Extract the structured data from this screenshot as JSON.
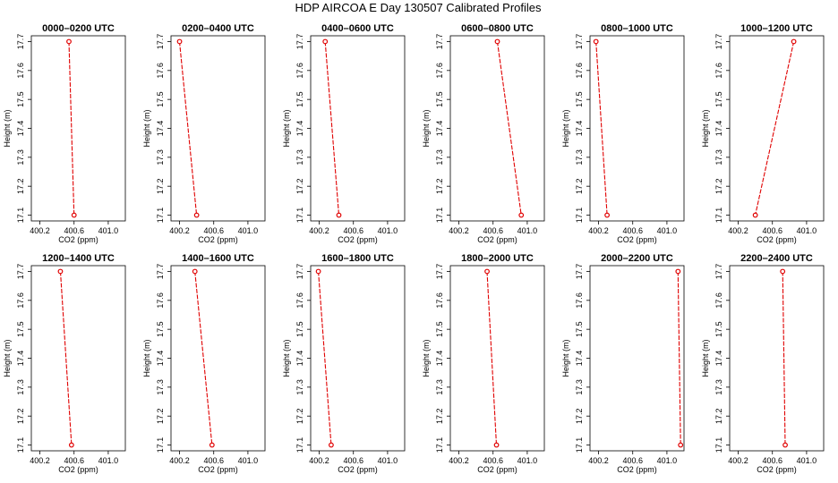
{
  "title": "HDP AIRCOA E  Day 130507  Calibrated Profiles",
  "chart_data": [
    {
      "type": "line",
      "title": "0000–0200 UTC",
      "xlabel": "CO2 (ppm)",
      "ylabel": "Height (m)",
      "xlim": [
        400.1,
        401.2
      ],
      "ylim": [
        17.08,
        17.72
      ],
      "xticks": [
        "400.2",
        "400.6",
        "401.0"
      ],
      "yticks": [
        "17.1",
        "17.2",
        "17.3",
        "17.4",
        "17.5",
        "17.6",
        "17.7"
      ],
      "x": [
        400.54,
        400.6
      ],
      "y": [
        17.7,
        17.1
      ]
    },
    {
      "type": "line",
      "title": "0200–0400 UTC",
      "xlabel": "CO2 (ppm)",
      "ylabel": "Height (m)",
      "xlim": [
        400.1,
        401.2
      ],
      "ylim": [
        17.08,
        17.72
      ],
      "xticks": [
        "400.2",
        "400.6",
        "401.0"
      ],
      "yticks": [
        "17.1",
        "17.2",
        "17.3",
        "17.4",
        "17.5",
        "17.6",
        "17.7"
      ],
      "x": [
        400.2,
        400.4
      ],
      "y": [
        17.7,
        17.1
      ]
    },
    {
      "type": "line",
      "title": "0400–0600 UTC",
      "xlabel": "CO2 (ppm)",
      "ylabel": "Height (m)",
      "xlim": [
        400.1,
        401.2
      ],
      "ylim": [
        17.08,
        17.72
      ],
      "xticks": [
        "400.2",
        "400.6",
        "401.0"
      ],
      "yticks": [
        "17.1",
        "17.2",
        "17.3",
        "17.4",
        "17.5",
        "17.6",
        "17.7"
      ],
      "x": [
        400.27,
        400.43
      ],
      "y": [
        17.7,
        17.1
      ]
    },
    {
      "type": "line",
      "title": "0600–0800 UTC",
      "xlabel": "CO2 (ppm)",
      "ylabel": "Height (m)",
      "xlim": [
        400.1,
        401.2
      ],
      "ylim": [
        17.08,
        17.72
      ],
      "xticks": [
        "400.2",
        "400.6",
        "401.0"
      ],
      "yticks": [
        "17.1",
        "17.2",
        "17.3",
        "17.4",
        "17.5",
        "17.6",
        "17.7"
      ],
      "x": [
        400.65,
        400.93
      ],
      "y": [
        17.7,
        17.1
      ]
    },
    {
      "type": "line",
      "title": "0800–1000 UTC",
      "xlabel": "CO2 (ppm)",
      "ylabel": "Height (m)",
      "xlim": [
        400.1,
        401.2
      ],
      "ylim": [
        17.08,
        17.72
      ],
      "xticks": [
        "400.2",
        "400.6",
        "401.0"
      ],
      "yticks": [
        "17.1",
        "17.2",
        "17.3",
        "17.4",
        "17.5",
        "17.6",
        "17.7"
      ],
      "x": [
        400.17,
        400.3
      ],
      "y": [
        17.7,
        17.1
      ]
    },
    {
      "type": "line",
      "title": "1000–1200 UTC",
      "xlabel": "CO2 (ppm)",
      "ylabel": "Height (m)",
      "xlim": [
        400.1,
        401.2
      ],
      "ylim": [
        17.08,
        17.72
      ],
      "xticks": [
        "400.2",
        "400.6",
        "401.0"
      ],
      "yticks": [
        "17.1",
        "17.2",
        "17.3",
        "17.4",
        "17.5",
        "17.6",
        "17.7"
      ],
      "x": [
        400.85,
        400.4
      ],
      "y": [
        17.7,
        17.1
      ]
    },
    {
      "type": "line",
      "title": "1200–1400 UTC",
      "xlabel": "CO2 (ppm)",
      "ylabel": "Height (m)",
      "xlim": [
        400.1,
        401.2
      ],
      "ylim": [
        17.08,
        17.72
      ],
      "xticks": [
        "400.2",
        "400.6",
        "401.0"
      ],
      "yticks": [
        "17.1",
        "17.2",
        "17.3",
        "17.4",
        "17.5",
        "17.6",
        "17.7"
      ],
      "x": [
        400.44,
        400.57
      ],
      "y": [
        17.7,
        17.1
      ]
    },
    {
      "type": "line",
      "title": "1400–1600 UTC",
      "xlabel": "CO2 (ppm)",
      "ylabel": "Height (m)",
      "xlim": [
        400.1,
        401.2
      ],
      "ylim": [
        17.08,
        17.72
      ],
      "xticks": [
        "400.2",
        "400.6",
        "401.0"
      ],
      "yticks": [
        "17.1",
        "17.2",
        "17.3",
        "17.4",
        "17.5",
        "17.6",
        "17.7"
      ],
      "x": [
        400.38,
        400.58
      ],
      "y": [
        17.7,
        17.1
      ]
    },
    {
      "type": "line",
      "title": "1600–1800 UTC",
      "xlabel": "CO2 (ppm)",
      "ylabel": "Height (m)",
      "xlim": [
        400.1,
        401.2
      ],
      "ylim": [
        17.08,
        17.72
      ],
      "xticks": [
        "400.2",
        "400.6",
        "401.0"
      ],
      "yticks": [
        "17.1",
        "17.2",
        "17.3",
        "17.4",
        "17.5",
        "17.6",
        "17.7"
      ],
      "x": [
        400.19,
        400.34
      ],
      "y": [
        17.7,
        17.1
      ]
    },
    {
      "type": "line",
      "title": "1800–2000 UTC",
      "xlabel": "CO2 (ppm)",
      "ylabel": "Height (m)",
      "xlim": [
        400.1,
        401.2
      ],
      "ylim": [
        17.08,
        17.72
      ],
      "xticks": [
        "400.2",
        "400.6",
        "401.0"
      ],
      "yticks": [
        "17.1",
        "17.2",
        "17.3",
        "17.4",
        "17.5",
        "17.6",
        "17.7"
      ],
      "x": [
        400.53,
        400.64
      ],
      "y": [
        17.7,
        17.1
      ]
    },
    {
      "type": "line",
      "title": "2000–2200 UTC",
      "xlabel": "CO2 (ppm)",
      "ylabel": "Height (m)",
      "xlim": [
        400.1,
        401.2
      ],
      "ylim": [
        17.08,
        17.72
      ],
      "xticks": [
        "400.2",
        "400.6",
        "401.0"
      ],
      "yticks": [
        "17.1",
        "17.2",
        "17.3",
        "17.4",
        "17.5",
        "17.6",
        "17.7"
      ],
      "x": [
        401.13,
        401.16
      ],
      "y": [
        17.7,
        17.1
      ]
    },
    {
      "type": "line",
      "title": "2200–2400 UTC",
      "xlabel": "CO2 (ppm)",
      "ylabel": "Height (m)",
      "xlim": [
        400.1,
        401.2
      ],
      "ylim": [
        17.08,
        17.72
      ],
      "xticks": [
        "400.2",
        "400.6",
        "401.0"
      ],
      "yticks": [
        "17.1",
        "17.2",
        "17.3",
        "17.4",
        "17.5",
        "17.6",
        "17.7"
      ],
      "x": [
        400.72,
        400.75
      ],
      "y": [
        17.7,
        17.1
      ]
    }
  ],
  "colors": {
    "series": "#e00000",
    "axes": "#000000",
    "marker_fill": "#ffffff"
  }
}
